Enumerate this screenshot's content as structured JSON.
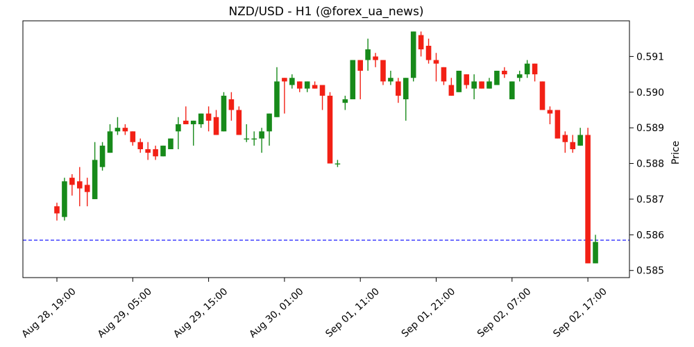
{
  "chart_data": {
    "type": "candlestick",
    "title": "NZD/USD - H1 (@forex_ua_news)",
    "xlabel": "",
    "ylabel": "Price",
    "grid": false,
    "legend": "none",
    "x_tick_labels": [
      "Aug 28, 19:00",
      "Aug 29, 05:00",
      "Aug 29, 15:00",
      "Aug 30, 01:00",
      "Sep 01, 11:00",
      "Sep 01, 21:00",
      "Sep 02, 07:00",
      "Sep 02, 17:00"
    ],
    "x_tick_positions": [
      0,
      10,
      20,
      30,
      40,
      50,
      60,
      70
    ],
    "y_tick_values": [
      0.585,
      0.586,
      0.587,
      0.588,
      0.589,
      0.59,
      0.591
    ],
    "ylim": [
      0.5848,
      0.592
    ],
    "current_price_line": {
      "value": 0.58585,
      "color": "#0000ff",
      "style": "dashed"
    },
    "colors": {
      "up": "#178a1a",
      "down": "#f22015",
      "axis": "#000000",
      "background": "#ffffff"
    },
    "candles_ohlc": [
      [
        0.5868,
        0.5869,
        0.5864,
        0.5866
      ],
      [
        0.5865,
        0.5876,
        0.5864,
        0.5875
      ],
      [
        0.5876,
        0.5877,
        0.5871,
        0.5874
      ],
      [
        0.5875,
        0.5879,
        0.5868,
        0.5873
      ],
      [
        0.5874,
        0.5876,
        0.5868,
        0.5872
      ],
      [
        0.587,
        0.5886,
        0.587,
        0.5881
      ],
      [
        0.5879,
        0.5886,
        0.5878,
        0.5885
      ],
      [
        0.5883,
        0.5891,
        0.5883,
        0.5889
      ],
      [
        0.5889,
        0.5893,
        0.5888,
        0.589
      ],
      [
        0.589,
        0.5891,
        0.5888,
        0.5889
      ],
      [
        0.5889,
        0.5889,
        0.5885,
        0.5886
      ],
      [
        0.5886,
        0.5887,
        0.5883,
        0.5884
      ],
      [
        0.5884,
        0.5886,
        0.5881,
        0.5883
      ],
      [
        0.5884,
        0.5885,
        0.5881,
        0.5882
      ],
      [
        0.5882,
        0.5885,
        0.5882,
        0.5885
      ],
      [
        0.5884,
        0.5887,
        0.5884,
        0.5887
      ],
      [
        0.5889,
        0.5893,
        0.5884,
        0.5891
      ],
      [
        0.5892,
        0.5896,
        0.5891,
        0.5891
      ],
      [
        0.5891,
        0.5892,
        0.5885,
        0.5892
      ],
      [
        0.5891,
        0.5894,
        0.589,
        0.5894
      ],
      [
        0.5894,
        0.5896,
        0.5889,
        0.5892
      ],
      [
        0.5893,
        0.5895,
        0.5888,
        0.5888
      ],
      [
        0.5889,
        0.59,
        0.5889,
        0.5899
      ],
      [
        0.5898,
        0.59,
        0.5892,
        0.5895
      ],
      [
        0.5895,
        0.5896,
        0.5888,
        0.5888
      ],
      [
        0.5887,
        0.5891,
        0.5886,
        0.5887
      ],
      [
        0.5887,
        0.5889,
        0.5885,
        0.5887
      ],
      [
        0.5887,
        0.589,
        0.5883,
        0.5889
      ],
      [
        0.5889,
        0.5894,
        0.5885,
        0.5894
      ],
      [
        0.5893,
        0.5907,
        0.5893,
        0.5903
      ],
      [
        0.5904,
        0.5904,
        0.5894,
        0.5903
      ],
      [
        0.5902,
        0.5905,
        0.5901,
        0.5904
      ],
      [
        0.5903,
        0.5903,
        0.59,
        0.5901
      ],
      [
        0.5901,
        0.5903,
        0.59,
        0.5903
      ],
      [
        0.5902,
        0.5903,
        0.5901,
        0.5901
      ],
      [
        0.5902,
        0.5902,
        0.5895,
        0.5899
      ],
      [
        0.5899,
        0.59,
        0.588,
        0.588
      ],
      [
        0.588,
        0.5881,
        0.5879,
        0.588
      ],
      [
        0.5897,
        0.5899,
        0.5895,
        0.5898
      ],
      [
        0.5898,
        0.5909,
        0.5898,
        0.5909
      ],
      [
        0.5909,
        0.5909,
        0.5898,
        0.5906
      ],
      [
        0.5909,
        0.5915,
        0.5906,
        0.5912
      ],
      [
        0.591,
        0.5911,
        0.5907,
        0.5909
      ],
      [
        0.5909,
        0.5909,
        0.5902,
        0.5903
      ],
      [
        0.5903,
        0.5906,
        0.5902,
        0.5904
      ],
      [
        0.5903,
        0.5904,
        0.5897,
        0.5899
      ],
      [
        0.5898,
        0.5904,
        0.5892,
        0.5904
      ],
      [
        0.5904,
        0.5917,
        0.5903,
        0.5917
      ],
      [
        0.5916,
        0.5917,
        0.591,
        0.5912
      ],
      [
        0.5913,
        0.5915,
        0.5908,
        0.5909
      ],
      [
        0.5909,
        0.5911,
        0.5903,
        0.5908
      ],
      [
        0.5907,
        0.5907,
        0.5902,
        0.5903
      ],
      [
        0.5902,
        0.5904,
        0.5899,
        0.5899
      ],
      [
        0.59,
        0.5906,
        0.59,
        0.5906
      ],
      [
        0.5905,
        0.5905,
        0.5901,
        0.5902
      ],
      [
        0.5901,
        0.5905,
        0.5898,
        0.5903
      ],
      [
        0.5903,
        0.5903,
        0.5901,
        0.5901
      ],
      [
        0.5901,
        0.5904,
        0.5901,
        0.5903
      ],
      [
        0.5902,
        0.5906,
        0.5902,
        0.5906
      ],
      [
        0.5906,
        0.5907,
        0.5904,
        0.5905
      ],
      [
        0.5898,
        0.5903,
        0.5898,
        0.5903
      ],
      [
        0.5904,
        0.5906,
        0.5903,
        0.5905
      ],
      [
        0.5905,
        0.5909,
        0.5904,
        0.5908
      ],
      [
        0.5908,
        0.5908,
        0.5903,
        0.5905
      ],
      [
        0.5903,
        0.5903,
        0.5895,
        0.5895
      ],
      [
        0.5895,
        0.5896,
        0.5891,
        0.5894
      ],
      [
        0.5895,
        0.5895,
        0.5887,
        0.5887
      ],
      [
        0.5888,
        0.5889,
        0.5883,
        0.5886
      ],
      [
        0.5886,
        0.5888,
        0.5883,
        0.5884
      ],
      [
        0.5885,
        0.589,
        0.5885,
        0.5888
      ],
      [
        0.5888,
        0.589,
        0.5852,
        0.5852
      ],
      [
        0.5852,
        0.586,
        0.5852,
        0.5858
      ]
    ]
  }
}
